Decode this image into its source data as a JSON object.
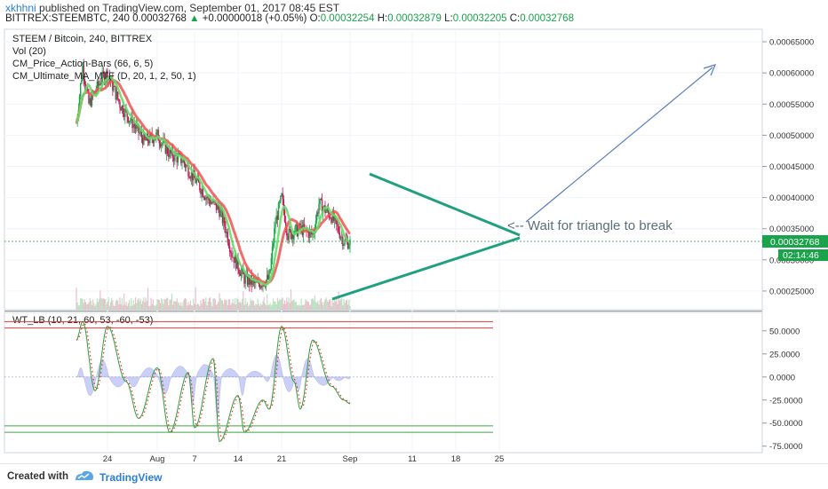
{
  "header": {
    "user": "xkhhni",
    "published": "published on TradingView.com, September 01, 2017 08:45 EST",
    "symbol": "BITTREX:STEEMBTC, 240",
    "last": "0.00032768",
    "change": "+0.00000018 (+0.05%)",
    "o_label": "O:",
    "o": "0.00032254",
    "h_label": "H:",
    "h": "0.00032879",
    "l_label": "L:",
    "l": "0.00032205",
    "c_label": "C:",
    "c": "0.00032768"
  },
  "legend": [
    "STEEM / Bitcoin, 240, BITTREX",
    "Vol (20)",
    "CM_Price_Action-Bars (66, 6, 5)",
    "CM_Ultimate_MA_MTF (D, 20, 1, 2, 50, 1)"
  ],
  "annotation": "<-- Wait for triangle to break",
  "oscillator_legend": "WT_LB (10, 21, 60, 53, -60, -53)",
  "price_badge": "0.00032768",
  "time_badge": "02:14:46",
  "footer": {
    "created": "Created with",
    "brand": "TradingView"
  },
  "colors": {
    "up": "#1aa34a",
    "down": "#c2185b",
    "ma_fast": "#ef5350",
    "ma_slow": "#66dd66",
    "triangle": "#20a080",
    "arrow": "#5a7bbf",
    "badge": "#1aa34a"
  },
  "chart_data": [
    {
      "type": "candlestick",
      "title": "STEEM / Bitcoin, 240, BITTREX",
      "ylim": [
        0.00022,
        0.00067
      ],
      "y_ticks": [
        "0.00065000",
        "0.00060000",
        "0.00055000",
        "0.00050000",
        "0.00045000",
        "0.00040000",
        "0.00035000",
        "0.00030000",
        "0.00025000"
      ],
      "x_ticks": [
        "24",
        "Aug",
        "7",
        "14",
        "21",
        "Sep",
        "11",
        "18",
        "25"
      ],
      "close_path": [
        [
          "Jul 19",
          0.00052
        ],
        [
          "Jul 20",
          0.00061
        ],
        [
          "Jul 21",
          0.00055
        ],
        [
          "Jul 23",
          0.00059
        ],
        [
          "Jul 24",
          0.0006
        ],
        [
          "Jul 26",
          0.00055
        ],
        [
          "Jul 28",
          0.00052
        ],
        [
          "Jul 30",
          0.00049
        ],
        [
          "Aug 1",
          0.0005
        ],
        [
          "Aug 3",
          0.00047
        ],
        [
          "Aug 5",
          0.00046
        ],
        [
          "Aug 7",
          0.00043
        ],
        [
          "Aug 9",
          0.0004
        ],
        [
          "Aug 11",
          0.00038
        ],
        [
          "Aug 12",
          0.00035
        ],
        [
          "Aug 13",
          0.00031
        ],
        [
          "Aug 14",
          0.00029
        ],
        [
          "Aug 15",
          0.00027
        ],
        [
          "Aug 17",
          0.00026
        ],
        [
          "Aug 19",
          0.00027
        ],
        [
          "Aug 20",
          0.00036
        ],
        [
          "Aug 21",
          0.0004
        ],
        [
          "Aug 22",
          0.00034
        ],
        [
          "Aug 24",
          0.00035
        ],
        [
          "Aug 26",
          0.00034
        ],
        [
          "Aug 27",
          0.00039
        ],
        [
          "Aug 29",
          0.00037
        ],
        [
          "Aug 31",
          0.00033
        ],
        [
          "Sep 1",
          0.00032768
        ]
      ],
      "triangle": {
        "upper": [
          [
            "Aug 20",
            0.00043
          ],
          [
            "Sep 3",
            0.00034
          ]
        ],
        "lower": [
          [
            "Aug 18",
            0.00024
          ],
          [
            "Sep 3",
            0.00033
          ]
        ]
      }
    },
    {
      "type": "line",
      "title": "WT_LB (10, 21, 60, 53, -60, -53)",
      "ylim": [
        -82,
        70
      ],
      "y_ticks": [
        "50.0000",
        "25.0000",
        "0.0000",
        "-25.0000",
        "-50.0000",
        "-75.0000"
      ],
      "levels": [
        60,
        53,
        -53,
        -60
      ],
      "wt1": [
        [
          "Jul 19",
          40
        ],
        [
          "Jul 20",
          60
        ],
        [
          "Jul 22",
          -15
        ],
        [
          "Jul 24",
          55
        ],
        [
          "Jul 27",
          -5
        ],
        [
          "Jul 29",
          -45
        ],
        [
          "Aug 1",
          10
        ],
        [
          "Aug 3",
          -60
        ],
        [
          "Aug 6",
          5
        ],
        [
          "Aug 7",
          -55
        ],
        [
          "Aug 10",
          20
        ],
        [
          "Aug 11",
          -70
        ],
        [
          "Aug 14",
          -20
        ],
        [
          "Aug 15",
          -60
        ],
        [
          "Aug 18",
          -25
        ],
        [
          "Aug 19",
          -35
        ],
        [
          "Aug 21",
          55
        ],
        [
          "Aug 23",
          -5
        ],
        [
          "Aug 24",
          -35
        ],
        [
          "Aug 26",
          40
        ],
        [
          "Aug 29",
          -10
        ],
        [
          "Aug 31",
          -25
        ],
        [
          "Sep 1",
          -29
        ]
      ]
    }
  ]
}
